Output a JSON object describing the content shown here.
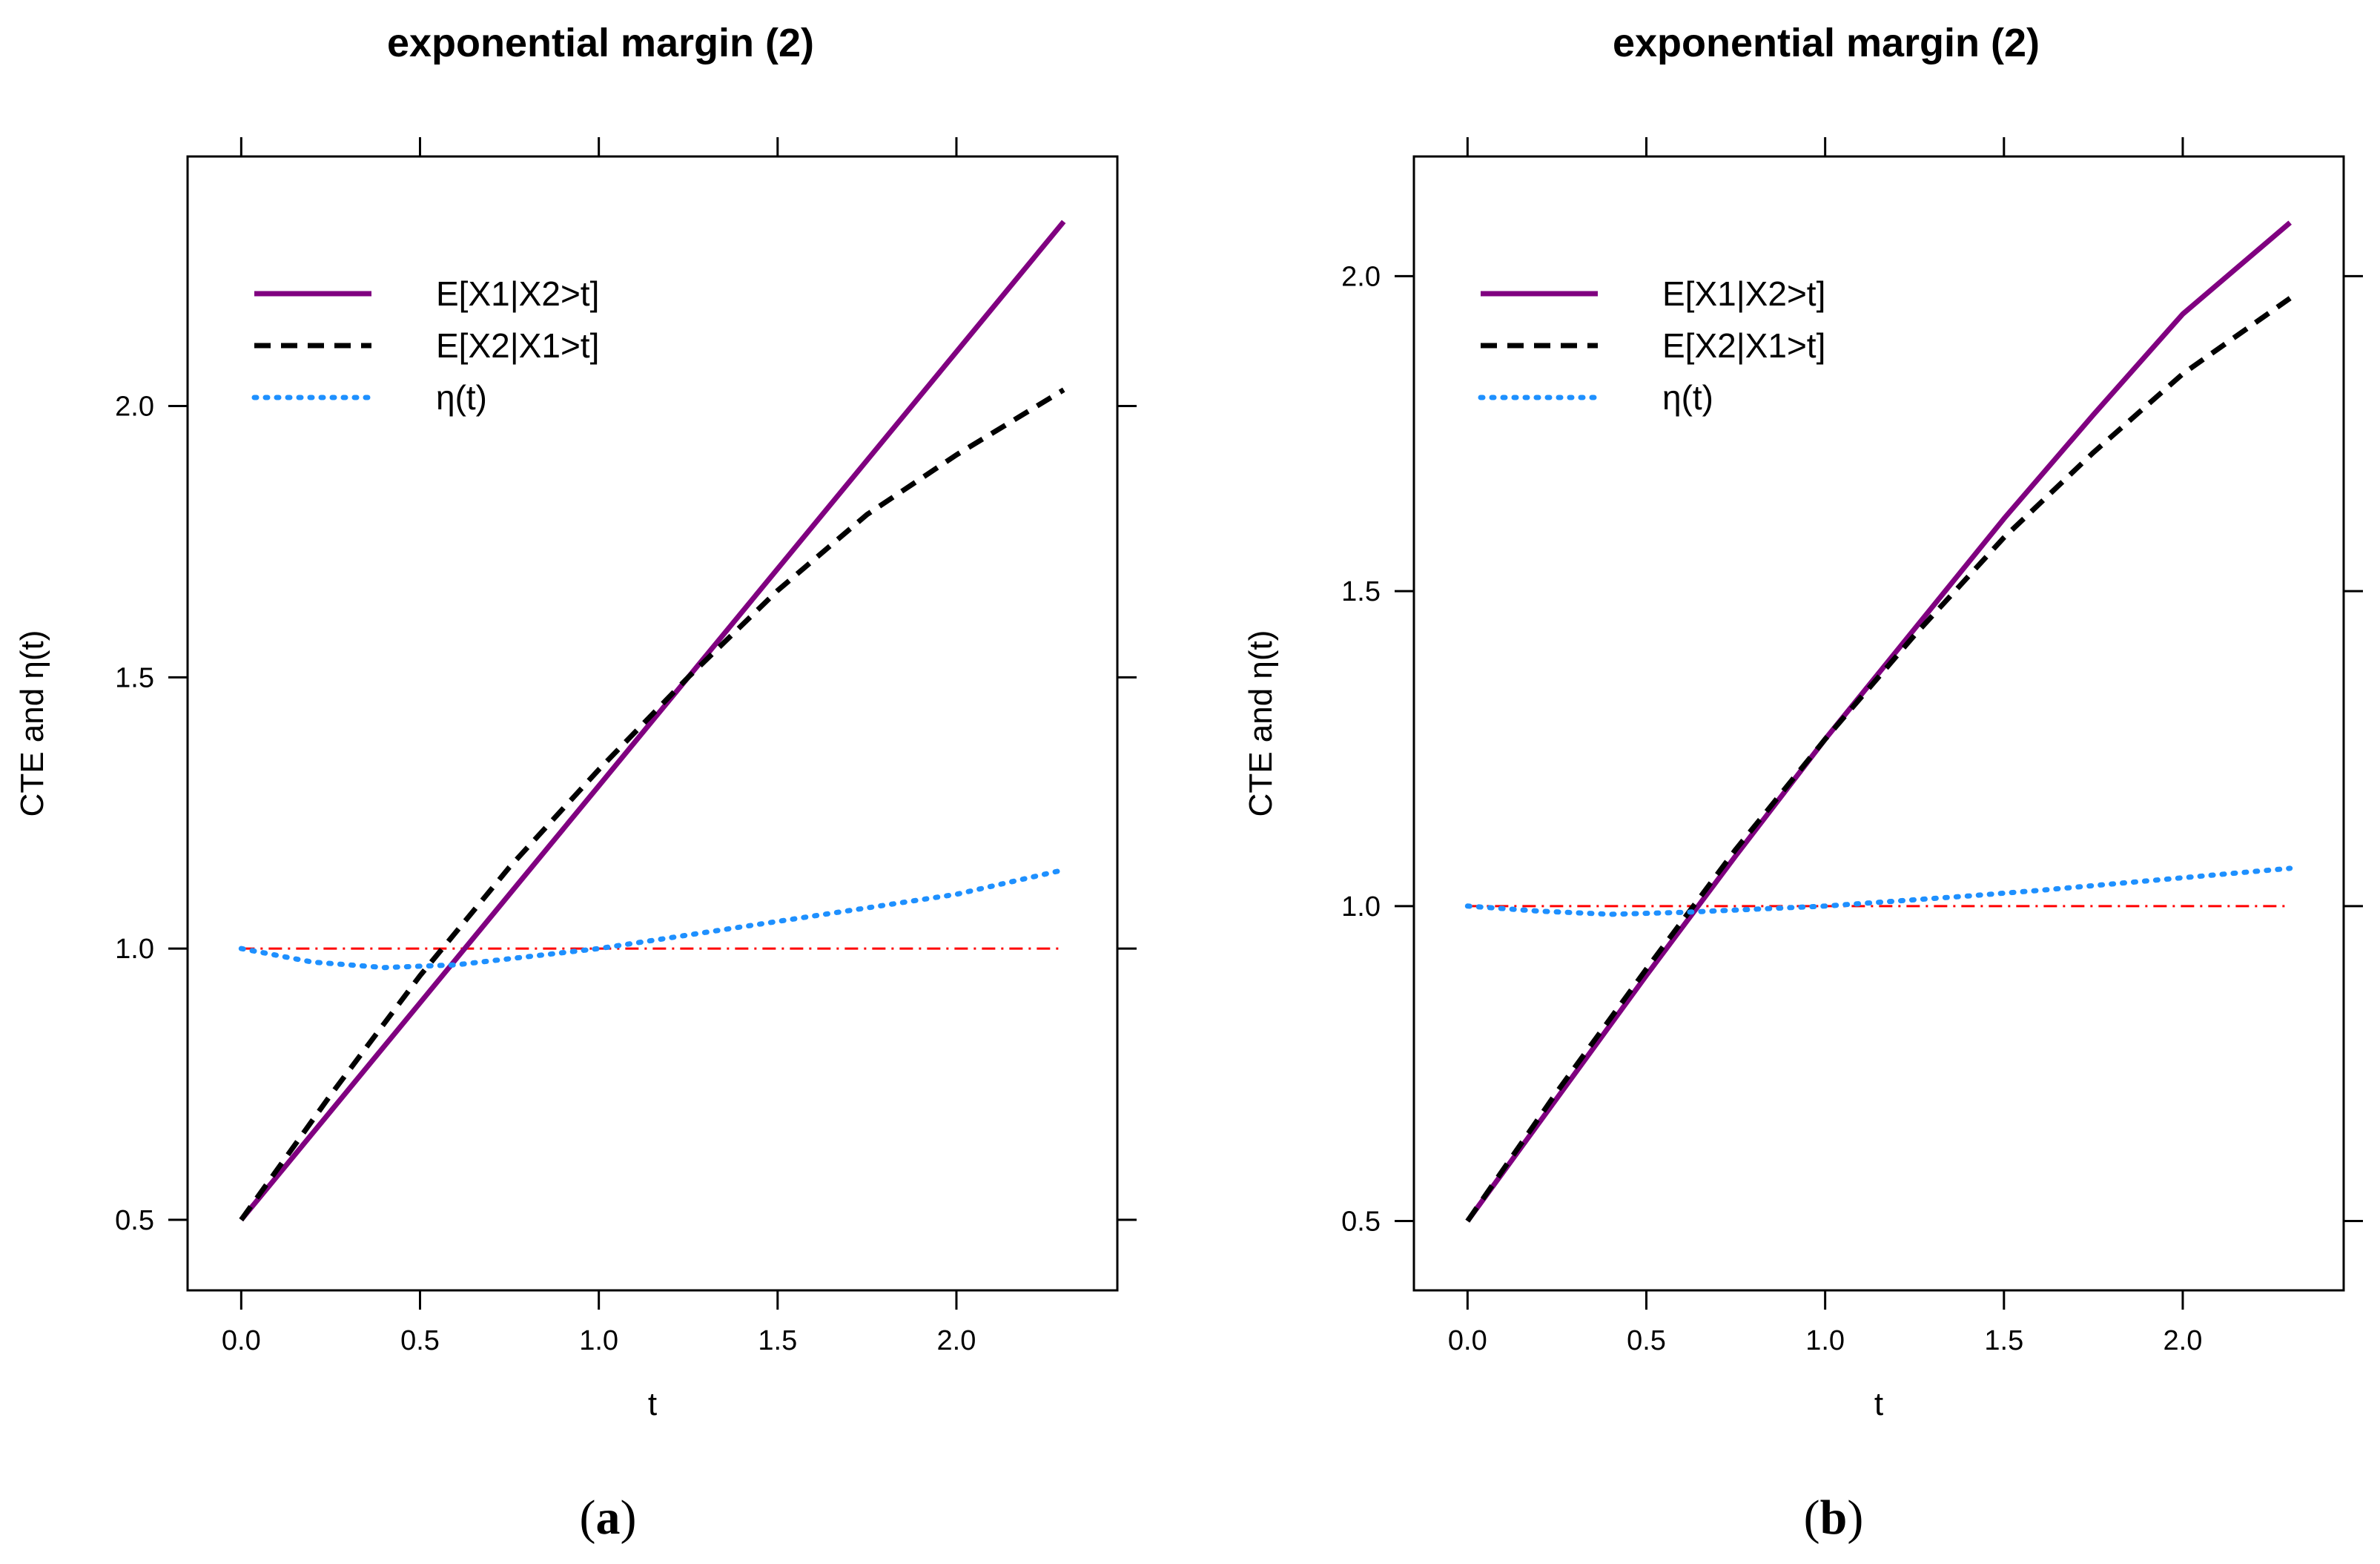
{
  "chart_data": [
    {
      "type": "line",
      "panel_label": "(a)",
      "panel_letter": "a",
      "title": "exponential margin (2)",
      "xlabel": "t",
      "ylabel": "CTE  and  η(t)",
      "xlim": [
        -0.15,
        2.45
      ],
      "ylim": [
        0.37,
        2.46
      ],
      "xticks": [
        0.0,
        0.5,
        1.0,
        1.5,
        2.0
      ],
      "xtick_labels": [
        "0.0",
        "0.5",
        "1.0",
        "1.5",
        "2.0"
      ],
      "yticks": [
        0.5,
        1.0,
        1.5,
        2.0
      ],
      "ytick_labels": [
        "0.5",
        "1.0",
        "1.5",
        "2.0"
      ],
      "grid": false,
      "legend_position": "top-left",
      "reference_line": {
        "y": 1.0,
        "x_range": [
          0.0,
          2.3
        ],
        "color": "#ff0000",
        "style": "dashdot"
      },
      "series": [
        {
          "name": "E[X1|X2>t]",
          "color": "#800080",
          "style": "solid",
          "x": [
            0.0,
            0.25,
            0.5,
            0.75,
            1.0,
            1.25,
            1.5,
            1.75,
            2.0,
            2.3
          ],
          "values": [
            0.5,
            0.7,
            0.9,
            1.1,
            1.3,
            1.5,
            1.7,
            1.9,
            2.1,
            2.34
          ]
        },
        {
          "name": "E[X2|X1>t]",
          "color": "#000000",
          "style": "dashed",
          "x": [
            0.0,
            0.25,
            0.5,
            0.75,
            1.0,
            1.25,
            1.5,
            1.75,
            2.0,
            2.3
          ],
          "values": [
            0.5,
            0.73,
            0.95,
            1.15,
            1.33,
            1.5,
            1.66,
            1.8,
            1.91,
            2.03
          ]
        },
        {
          "name": "η(t)",
          "color": "#1e90ff",
          "style": "dotted",
          "x": [
            0.0,
            0.2,
            0.4,
            0.6,
            0.8,
            1.0,
            1.2,
            1.4,
            1.6,
            1.8,
            2.0,
            2.3
          ],
          "values": [
            1.0,
            0.975,
            0.965,
            0.97,
            0.985,
            1.0,
            1.02,
            1.04,
            1.06,
            1.08,
            1.1,
            1.145
          ]
        }
      ]
    },
    {
      "type": "line",
      "panel_label": "(b)",
      "panel_letter": "b",
      "title": "exponential margin (2)",
      "xlabel": "t",
      "ylabel": "CTE  and  η(t)",
      "xlim": [
        -0.15,
        2.45
      ],
      "ylim": [
        0.39,
        2.19
      ],
      "xticks": [
        0.0,
        0.5,
        1.0,
        1.5,
        2.0
      ],
      "xtick_labels": [
        "0.0",
        "0.5",
        "1.0",
        "1.5",
        "2.0"
      ],
      "yticks": [
        0.5,
        1.0,
        1.5,
        2.0
      ],
      "ytick_labels": [
        "0.5",
        "1.0",
        "1.5",
        "2.0"
      ],
      "grid": false,
      "legend_position": "top-left",
      "reference_line": {
        "y": 1.0,
        "x_range": [
          0.0,
          2.3
        ],
        "color": "#ff0000",
        "style": "dashdot"
      },
      "series": [
        {
          "name": "E[X1|X2>t]",
          "color": "#800080",
          "style": "solid",
          "x": [
            0.0,
            0.25,
            0.5,
            0.75,
            1.0,
            1.25,
            1.5,
            1.75,
            2.0,
            2.3
          ],
          "values": [
            0.5,
            0.695,
            0.89,
            1.08,
            1.265,
            1.44,
            1.615,
            1.78,
            1.94,
            2.085
          ]
        },
        {
          "name": "E[X2|X1>t]",
          "color": "#000000",
          "style": "dashed",
          "x": [
            0.0,
            0.25,
            0.5,
            0.75,
            1.0,
            1.25,
            1.5,
            1.75,
            2.0,
            2.3
          ],
          "values": [
            0.5,
            0.705,
            0.9,
            1.09,
            1.265,
            1.43,
            1.585,
            1.72,
            1.845,
            1.965
          ]
        },
        {
          "name": "η(t)",
          "color": "#1e90ff",
          "style": "dotted",
          "x": [
            0.0,
            0.2,
            0.4,
            0.6,
            0.8,
            1.0,
            1.2,
            1.4,
            1.6,
            1.8,
            2.0,
            2.3
          ],
          "values": [
            1.0,
            0.992,
            0.987,
            0.99,
            0.995,
            1.0,
            1.008,
            1.016,
            1.025,
            1.035,
            1.045,
            1.06
          ]
        }
      ]
    }
  ]
}
